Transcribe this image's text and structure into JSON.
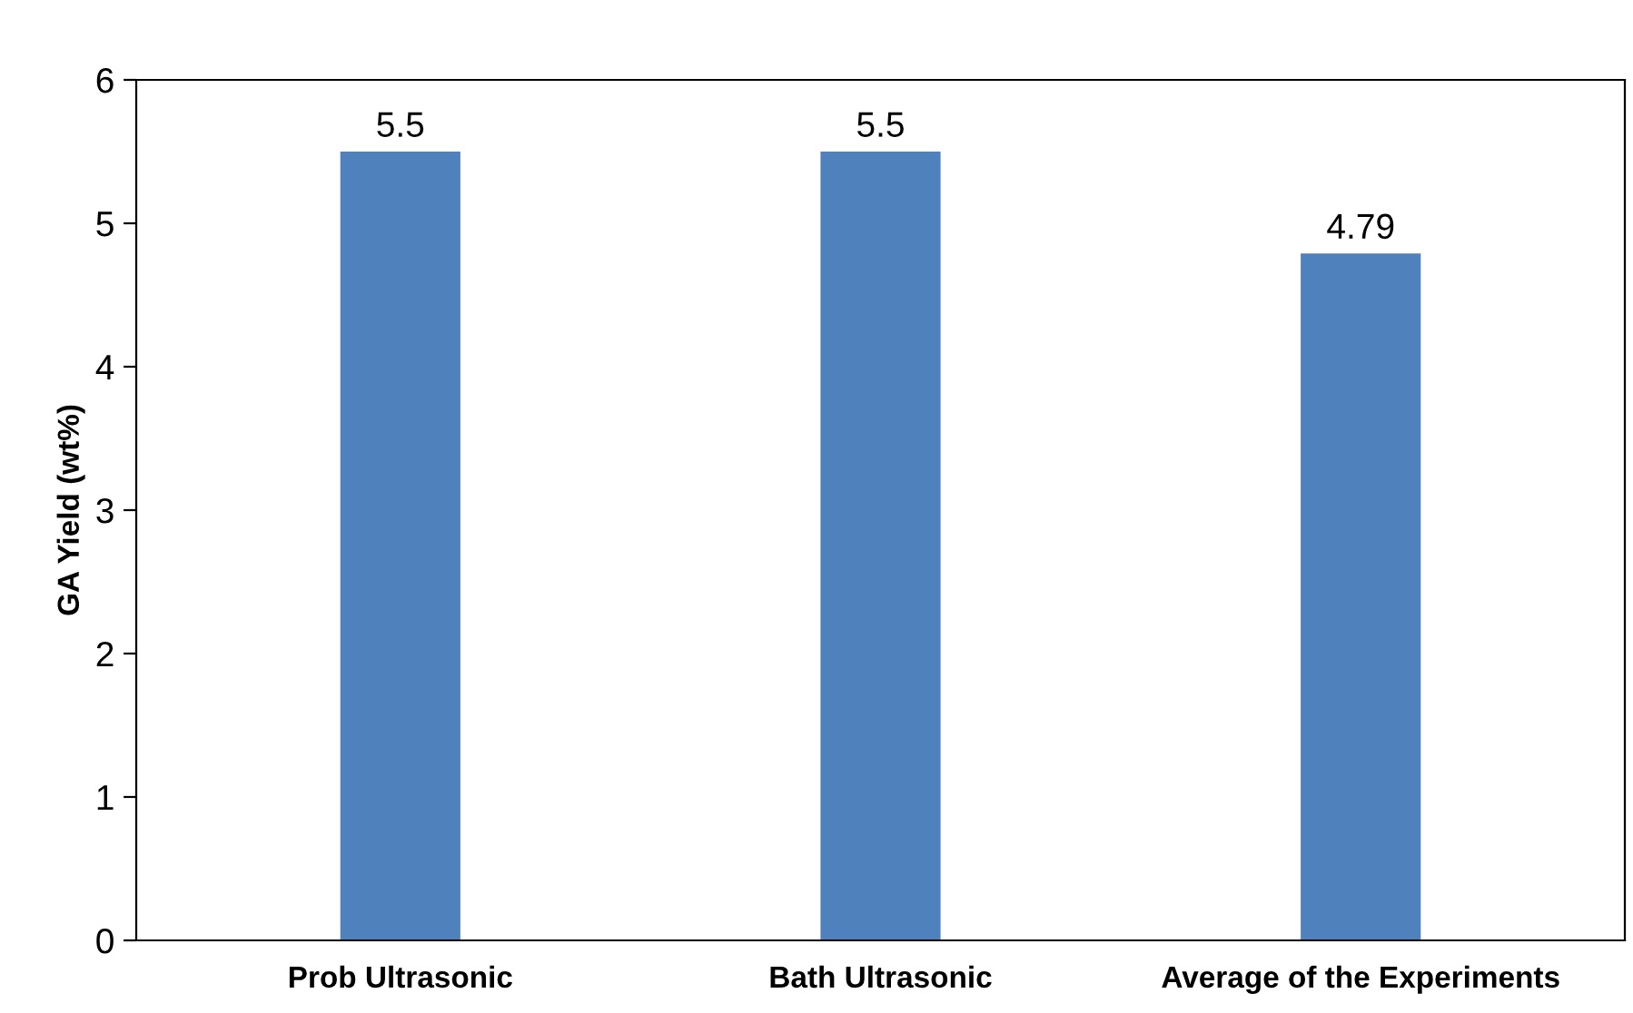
{
  "chart_data": {
    "type": "bar",
    "ylabel": "GA Yield (wt%)",
    "categories": [
      "Prob Ultrasonic",
      "Bath Ultrasonic",
      "Average of the Experiments"
    ],
    "values": [
      5.5,
      5.5,
      4.79
    ],
    "color": "#4f81bd",
    "ylim": [
      0,
      6
    ],
    "yticks": [
      0,
      1,
      2,
      3,
      4,
      5,
      6
    ],
    "data_labels": true,
    "grid": false,
    "legend": false
  }
}
